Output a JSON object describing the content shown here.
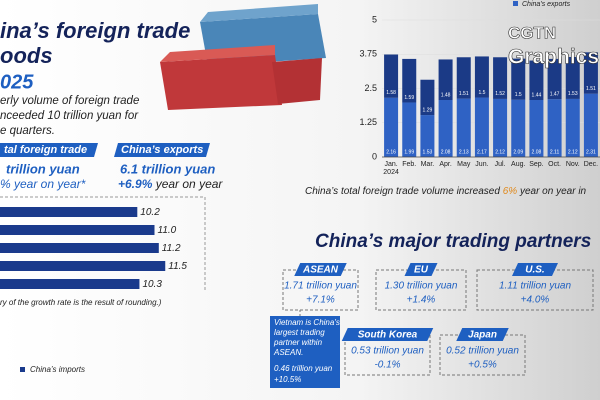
{
  "header": {
    "title_lines": [
      "ina’s foreign trade",
      "oods"
    ],
    "year": "025",
    "intro_lines": [
      "erly volume of foreign trade",
      "nceeded 10 trillion yuan for",
      "e quarters."
    ]
  },
  "summary": {
    "total_label": "tal foreign trade",
    "total_value": "trillion yuan",
    "total_change": "% year on year*",
    "exports_label": "China’s exports",
    "exports_value": "6.1 trillion yuan",
    "exports_change": "+6.9%",
    "exports_change_suffix": "year on year"
  },
  "footnote": "ry of the growth rate is the result of rounding.)",
  "chart_data": [
    {
      "type": "hbar",
      "values": [
        10.2,
        11,
        11.2,
        11.5,
        10.3
      ],
      "value_labels": [
        "10.2",
        "11.0",
        "11.2",
        "11.5",
        "10.3"
      ],
      "color": "#1a3a8c",
      "xlim": [
        0,
        12
      ],
      "legend_label": "China’s imports"
    },
    {
      "type": "stacked_bar",
      "categories": [
        "Jan. 2024",
        "Feb.",
        "Mar.",
        "Apr.",
        "May",
        "Jun.",
        "Jul.",
        "Aug.",
        "Sep.",
        "Oct.",
        "Nov.",
        "Dec."
      ],
      "series": [
        {
          "name": "China’s exports",
          "color": "#2f62c4",
          "values": [
            2.16,
            1.99,
            1.53,
            2.08,
            2.13,
            2.17,
            2.12,
            2.09,
            2.08,
            2.11,
            2.12,
            2.31
          ]
        },
        {
          "name": "China’s imports",
          "color": "#1b3a86",
          "values": [
            1.58,
            1.59,
            1.29,
            1.48,
            1.51,
            1.5,
            1.52,
            1.5,
            1.44,
            1.47,
            1.53,
            1.51
          ]
        }
      ],
      "ylim": [
        0,
        5
      ],
      "yticks": [
        0,
        1.25,
        2.5,
        3.75,
        5
      ],
      "legend_series": 0,
      "caption": [
        "China’s total foreign trade volume increased ",
        "6%",
        " year on year in"
      ]
    }
  ],
  "partners": {
    "title": "China’s major trading partners",
    "items": [
      {
        "name": "ASEAN",
        "value": "1.71 trillion yuan",
        "change": "+7.1%"
      },
      {
        "name": "EU",
        "value": "1.30 trillion yuan",
        "change": "+1.4%"
      },
      {
        "name": "U.S.",
        "value": "1.11 trillion yuan",
        "change": "+4.0%"
      },
      {
        "name": "South Korea",
        "value": "0.53 trillion yuan",
        "change": "-0.1%"
      },
      {
        "name": "Japan",
        "value": "0.52 trillion yuan",
        "change": "+0.5%"
      }
    ],
    "note": {
      "lines": [
        "Vietnam is China's",
        "largest trading",
        "partner within",
        "ASEAN."
      ],
      "value": "0.46 trillion yuan",
      "change": "+10.5%"
    }
  },
  "logo": [
    "CGTN",
    "Graphics"
  ]
}
